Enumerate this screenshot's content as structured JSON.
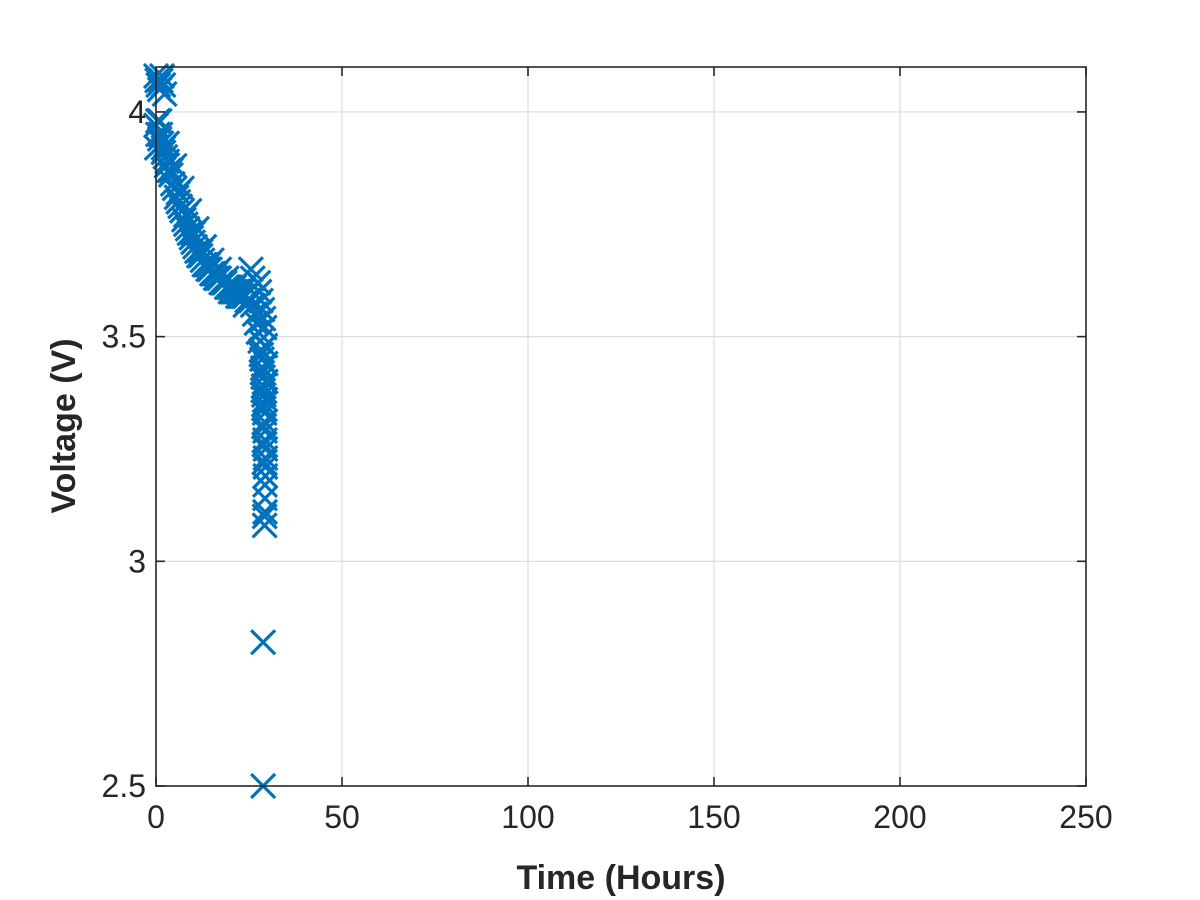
{
  "chart_data": {
    "type": "scatter",
    "title": "",
    "xlabel": "Time (Hours)",
    "ylabel": "Voltage (V)",
    "xlim": [
      0,
      250
    ],
    "ylim": [
      2.5,
      4.1
    ],
    "xticks": [
      0,
      50,
      100,
      150,
      200,
      250
    ],
    "yticks": [
      2.5,
      3,
      3.5,
      4
    ],
    "xtick_labels": [
      "0",
      "50",
      "100",
      "150",
      "200",
      "250"
    ],
    "ytick_labels": [
      "2.5",
      "3",
      "3.5",
      "4"
    ],
    "grid": true,
    "legend": "none",
    "marker": "x",
    "color": "#0072BD",
    "series": [
      {
        "x": [
          0,
          0.3,
          0.6,
          1,
          1.3,
          1.6,
          2,
          2.3,
          0.5,
          0.2,
          1.2,
          2.8,
          0,
          0.5,
          1,
          1.5,
          2,
          2.5,
          3,
          3.5,
          4,
          4.5,
          5,
          5.5,
          6,
          6.5,
          7,
          7.5,
          8,
          8.5,
          9,
          9.5,
          10,
          10.5,
          11,
          11.5,
          12,
          12.5,
          13,
          13.5,
          14,
          14.5,
          15,
          15.5,
          16,
          16.5,
          17,
          17.5,
          18,
          18.5,
          19,
          19.5,
          20,
          20.5,
          21,
          21.5,
          22,
          22.5,
          23,
          23.5,
          24,
          24.5,
          25,
          25.5,
          26,
          1,
          3,
          5,
          7,
          9,
          11,
          13,
          15,
          17,
          19,
          21,
          23,
          25,
          2,
          4,
          6,
          8,
          10,
          12,
          14,
          16,
          18,
          20,
          22,
          24,
          26.5,
          27,
          27.5,
          28,
          28.3,
          28.5,
          28.7,
          28.8,
          28.9,
          29,
          29.1,
          29.2,
          29.2,
          29.3,
          29.3,
          29.4,
          29.4,
          29.4,
          29.4,
          29.3,
          29.3,
          29.3,
          29.2,
          29.2,
          29.1,
          29.1,
          29,
          29,
          27.5,
          27.8,
          28.2,
          28.6,
          28.9,
          29.2,
          29.4,
          29.5,
          29.5,
          29.4,
          25.5,
          26,
          28.3,
          28.6,
          28.8
        ],
        "y": [
          4.08,
          4.07,
          4.06,
          4.05,
          4.07,
          4.08,
          4.06,
          4.04,
          3.98,
          3.92,
          3.95,
          3.88,
          3.97,
          3.95,
          3.94,
          3.93,
          3.91,
          3.9,
          3.89,
          3.87,
          3.86,
          3.84,
          3.83,
          3.81,
          3.8,
          3.79,
          3.78,
          3.76,
          3.75,
          3.74,
          3.73,
          3.72,
          3.71,
          3.7,
          3.69,
          3.68,
          3.68,
          3.67,
          3.66,
          3.66,
          3.65,
          3.65,
          3.64,
          3.64,
          3.63,
          3.63,
          3.63,
          3.62,
          3.62,
          3.62,
          3.61,
          3.61,
          3.61,
          3.6,
          3.6,
          3.6,
          3.6,
          3.59,
          3.59,
          3.59,
          3.59,
          3.58,
          3.58,
          3.58,
          3.57,
          3.98,
          3.93,
          3.88,
          3.83,
          3.78,
          3.74,
          3.7,
          3.67,
          3.65,
          3.63,
          3.61,
          3.6,
          3.58,
          3.92,
          3.87,
          3.82,
          3.77,
          3.73,
          3.69,
          3.66,
          3.64,
          3.62,
          3.6,
          3.59,
          3.57,
          3.55,
          3.53,
          3.51,
          3.49,
          3.47,
          3.45,
          3.43,
          3.41,
          3.39,
          3.37,
          3.35,
          3.33,
          3.31,
          3.29,
          3.27,
          3.25,
          3.23,
          3.21,
          3.19,
          3.17,
          3.14,
          3.11,
          3.1,
          3.08,
          3.22,
          3.26,
          3.3,
          3.34,
          3.62,
          3.6,
          3.58,
          3.56,
          3.54,
          3.52,
          3.48,
          3.44,
          3.4,
          3.36,
          3.65,
          3.63,
          3.46,
          3.42,
          3.38
        ]
      },
      {
        "x": [
          28.8,
          28.8
        ],
        "y": [
          2.82,
          2.5
        ]
      }
    ]
  }
}
